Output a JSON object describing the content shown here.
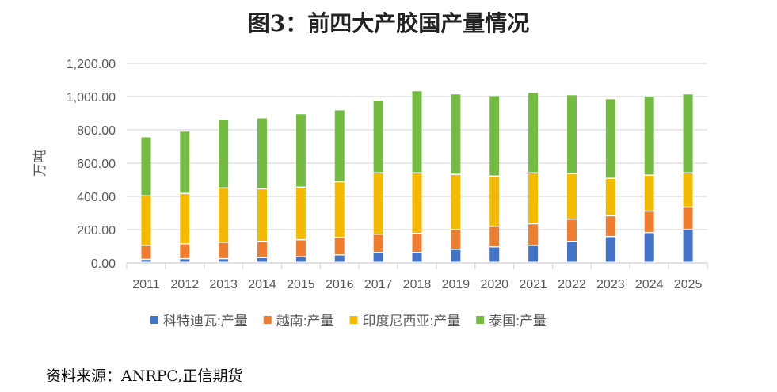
{
  "chart_data": {
    "type": "bar",
    "stacked": true,
    "title": "图3：前四大产胶国产量情况",
    "ylabel": "万吨",
    "xlabel": "",
    "ylim": [
      0,
      1200
    ],
    "yticks": [
      "0.00",
      "200.00",
      "400.00",
      "600.00",
      "800.00",
      "1,000.00",
      "1,200.00"
    ],
    "grid": true,
    "legend": "bottom",
    "categories": [
      "2011",
      "2012",
      "2013",
      "2014",
      "2015",
      "2016",
      "2017",
      "2018",
      "2019",
      "2020",
      "2021",
      "2022",
      "2023",
      "2024",
      "2025"
    ],
    "series": [
      {
        "name": "科特迪瓦:产量",
        "color": "#4472C4",
        "values": [
          18,
          22,
          22,
          29,
          34,
          45,
          59,
          59,
          78,
          93,
          102,
          126,
          155,
          179,
          198
        ]
      },
      {
        "name": "越南:产量",
        "color": "#ED7D31",
        "values": [
          84,
          90,
          99,
          97,
          102,
          105,
          110,
          115,
          120,
          124,
          130,
          134,
          125,
          129,
          134
        ]
      },
      {
        "name": "印度尼西亚:产量",
        "color": "#F2BA02",
        "values": [
          298,
          302,
          326,
          316,
          316,
          335,
          369,
          364,
          331,
          302,
          306,
          273,
          225,
          216,
          206
        ]
      },
      {
        "name": "泰国:产量",
        "color": "#75BB43",
        "values": [
          355,
          375,
          413,
          427,
          442,
          432,
          438,
          494,
          484,
          484,
          484,
          475,
          479,
          475,
          475
        ]
      }
    ]
  },
  "source": "资料来源：ANRPC,正信期货"
}
